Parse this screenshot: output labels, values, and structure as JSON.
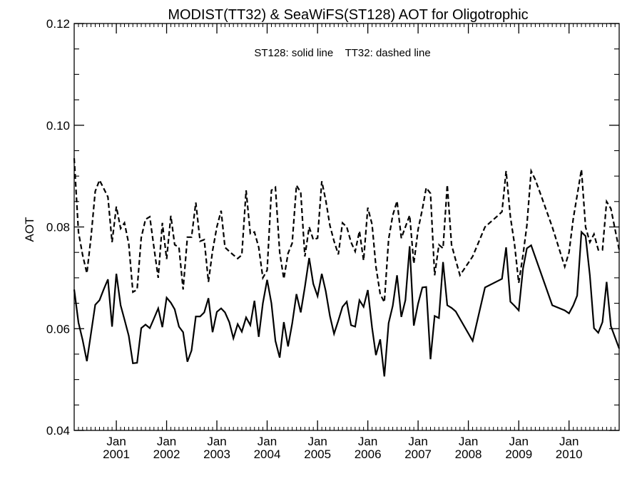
{
  "chart_data": {
    "type": "line",
    "title": "MODIST(TT32) & SeaWiFS(ST128)  AOT for Oligotrophic",
    "xlabel": "",
    "ylabel": "AOT",
    "annotation": "ST128: solid line    TT32: dashed line",
    "xlim": [
      "2000-03-01",
      "2010-12-31"
    ],
    "ylim": [
      0.04,
      0.12
    ],
    "yticks": [
      "0.04",
      "0.06",
      "0.08",
      "0.10",
      "0.12"
    ],
    "xticks": [
      {
        "label_top": "Jan",
        "label_bottom": "2001",
        "date": "2001-01-01"
      },
      {
        "label_top": "Jan",
        "label_bottom": "2002",
        "date": "2002-01-01"
      },
      {
        "label_top": "Jan",
        "label_bottom": "2003",
        "date": "2003-01-01"
      },
      {
        "label_top": "Jan",
        "label_bottom": "2004",
        "date": "2004-01-01"
      },
      {
        "label_top": "Jan",
        "label_bottom": "2005",
        "date": "2005-01-01"
      },
      {
        "label_top": "Jan",
        "label_bottom": "2006",
        "date": "2006-01-01"
      },
      {
        "label_top": "Jan",
        "label_bottom": "2007",
        "date": "2007-01-01"
      },
      {
        "label_top": "Jan",
        "label_bottom": "2008",
        "date": "2008-01-01"
      },
      {
        "label_top": "Jan",
        "label_bottom": "2009",
        "date": "2009-01-01"
      },
      {
        "label_top": "Jan",
        "label_bottom": "2010",
        "date": "2010-01-01"
      }
    ],
    "grid": false,
    "series": [
      {
        "name": "ST128",
        "style": "solid",
        "color": "#000000",
        "points": [
          [
            "2000-03-01",
            0.0677
          ],
          [
            "2000-04-01",
            0.0612
          ],
          [
            "2000-05-01",
            0.0578
          ],
          [
            "2000-06-01",
            0.0536
          ],
          [
            "2000-08-01",
            0.0647
          ],
          [
            "2000-09-01",
            0.0656
          ],
          [
            "2000-10-01",
            0.0677
          ],
          [
            "2000-11-01",
            0.0697
          ],
          [
            "2000-12-01",
            0.0604
          ],
          [
            "2001-01-01",
            0.0708
          ],
          [
            "2001-02-01",
            0.0646
          ],
          [
            "2001-03-01",
            0.0618
          ],
          [
            "2001-04-01",
            0.0586
          ],
          [
            "2001-05-01",
            0.0532
          ],
          [
            "2001-06-01",
            0.0533
          ],
          [
            "2001-07-01",
            0.0601
          ],
          [
            "2001-08-01",
            0.0608
          ],
          [
            "2001-09-01",
            0.0601
          ],
          [
            "2001-10-01",
            0.062
          ],
          [
            "2001-11-01",
            0.064
          ],
          [
            "2001-12-01",
            0.0603
          ],
          [
            "2002-01-01",
            0.0661
          ],
          [
            "2002-02-01",
            0.0651
          ],
          [
            "2002-03-01",
            0.0638
          ],
          [
            "2002-04-01",
            0.0604
          ],
          [
            "2002-05-01",
            0.0593
          ],
          [
            "2002-06-01",
            0.0535
          ],
          [
            "2002-07-01",
            0.0557
          ],
          [
            "2002-08-01",
            0.0624
          ],
          [
            "2002-09-01",
            0.0624
          ],
          [
            "2002-10-01",
            0.0632
          ],
          [
            "2002-11-01",
            0.066
          ],
          [
            "2002-12-01",
            0.0593
          ],
          [
            "2003-01-01",
            0.0633
          ],
          [
            "2003-02-01",
            0.064
          ],
          [
            "2003-03-01",
            0.0632
          ],
          [
            "2003-04-01",
            0.0613
          ],
          [
            "2003-05-01",
            0.0581
          ],
          [
            "2003-06-01",
            0.0609
          ],
          [
            "2003-07-01",
            0.0594
          ],
          [
            "2003-08-01",
            0.0622
          ],
          [
            "2003-09-01",
            0.0607
          ],
          [
            "2003-10-01",
            0.0655
          ],
          [
            "2003-11-01",
            0.0584
          ],
          [
            "2003-12-01",
            0.065
          ],
          [
            "2004-01-01",
            0.0696
          ],
          [
            "2004-02-01",
            0.065
          ],
          [
            "2004-03-01",
            0.0576
          ],
          [
            "2004-04-01",
            0.0543
          ],
          [
            "2004-05-01",
            0.0613
          ],
          [
            "2004-06-01",
            0.0565
          ],
          [
            "2004-07-01",
            0.061
          ],
          [
            "2004-08-01",
            0.0668
          ],
          [
            "2004-09-01",
            0.0632
          ],
          [
            "2004-10-01",
            0.0682
          ],
          [
            "2004-11-01",
            0.0739
          ],
          [
            "2004-12-01",
            0.0688
          ],
          [
            "2005-01-01",
            0.0664
          ],
          [
            "2005-02-01",
            0.0708
          ],
          [
            "2005-03-01",
            0.0674
          ],
          [
            "2005-04-01",
            0.0625
          ],
          [
            "2005-05-01",
            0.059
          ],
          [
            "2005-06-01",
            0.0616
          ],
          [
            "2005-07-01",
            0.0643
          ],
          [
            "2005-08-01",
            0.0653
          ],
          [
            "2005-09-01",
            0.0607
          ],
          [
            "2005-10-01",
            0.0604
          ],
          [
            "2005-11-01",
            0.0656
          ],
          [
            "2005-12-01",
            0.0643
          ],
          [
            "2006-01-01",
            0.0676
          ],
          [
            "2006-02-01",
            0.0602
          ],
          [
            "2006-03-01",
            0.0548
          ],
          [
            "2006-04-01",
            0.0579
          ],
          [
            "2006-05-01",
            0.0506
          ],
          [
            "2006-06-01",
            0.0611
          ],
          [
            "2006-07-01",
            0.0645
          ],
          [
            "2006-08-01",
            0.0705
          ],
          [
            "2006-09-01",
            0.0623
          ],
          [
            "2006-10-01",
            0.0656
          ],
          [
            "2006-11-01",
            0.0762
          ],
          [
            "2006-12-01",
            0.0606
          ],
          [
            "2007-01-01",
            0.0649
          ],
          [
            "2007-02-01",
            0.0681
          ],
          [
            "2007-03-01",
            0.0682
          ],
          [
            "2007-04-01",
            0.054
          ],
          [
            "2007-05-01",
            0.0625
          ],
          [
            "2007-06-01",
            0.0621
          ],
          [
            "2007-07-01",
            0.0731
          ],
          [
            "2007-08-01",
            0.0646
          ],
          [
            "2007-09-01",
            0.0641
          ],
          [
            "2007-10-01",
            0.0634
          ],
          [
            "2008-02-01",
            0.0576
          ],
          [
            "2008-05-01",
            0.0681
          ],
          [
            "2008-09-01",
            0.0698
          ],
          [
            "2008-10-01",
            0.076
          ],
          [
            "2008-11-01",
            0.0653
          ],
          [
            "2008-12-01",
            0.0645
          ],
          [
            "2009-01-01",
            0.0636
          ],
          [
            "2009-02-01",
            0.0718
          ],
          [
            "2009-03-01",
            0.0758
          ],
          [
            "2009-04-01",
            0.0764
          ],
          [
            "2009-09-01",
            0.0646
          ],
          [
            "2009-12-01",
            0.0636
          ],
          [
            "2010-01-01",
            0.063
          ],
          [
            "2010-02-01",
            0.0646
          ],
          [
            "2010-03-01",
            0.0665
          ],
          [
            "2010-04-01",
            0.079
          ],
          [
            "2010-05-01",
            0.0782
          ],
          [
            "2010-06-01",
            0.0705
          ],
          [
            "2010-07-01",
            0.0601
          ],
          [
            "2010-08-01",
            0.0592
          ],
          [
            "2010-09-01",
            0.0613
          ],
          [
            "2010-10-01",
            0.0692
          ],
          [
            "2010-11-01",
            0.0605
          ],
          [
            "2010-12-31",
            0.0561
          ]
        ]
      },
      {
        "name": "TT32",
        "style": "dashed",
        "color": "#000000",
        "points": [
          [
            "2000-03-01",
            0.0935
          ],
          [
            "2000-04-01",
            0.079
          ],
          [
            "2000-05-01",
            0.0745
          ],
          [
            "2000-06-01",
            0.0709
          ],
          [
            "2000-07-01",
            0.078
          ],
          [
            "2000-08-01",
            0.087
          ],
          [
            "2000-09-01",
            0.0892
          ],
          [
            "2000-10-01",
            0.0876
          ],
          [
            "2000-11-01",
            0.0859
          ],
          [
            "2000-12-01",
            0.077
          ],
          [
            "2001-01-01",
            0.084
          ],
          [
            "2001-02-01",
            0.0797
          ],
          [
            "2001-03-01",
            0.0808
          ],
          [
            "2001-04-01",
            0.0767
          ],
          [
            "2001-05-01",
            0.0672
          ],
          [
            "2001-06-01",
            0.0677
          ],
          [
            "2001-07-01",
            0.0779
          ],
          [
            "2001-08-01",
            0.0815
          ],
          [
            "2001-09-01",
            0.082
          ],
          [
            "2001-10-01",
            0.076
          ],
          [
            "2001-11-01",
            0.07
          ],
          [
            "2001-12-01",
            0.0808
          ],
          [
            "2002-01-01",
            0.0737
          ],
          [
            "2002-02-01",
            0.0822
          ],
          [
            "2002-03-01",
            0.0765
          ],
          [
            "2002-04-01",
            0.076
          ],
          [
            "2002-05-01",
            0.0677
          ],
          [
            "2002-06-01",
            0.078
          ],
          [
            "2002-07-01",
            0.078
          ],
          [
            "2002-08-01",
            0.0848
          ],
          [
            "2002-09-01",
            0.0772
          ],
          [
            "2002-10-01",
            0.0775
          ],
          [
            "2002-11-01",
            0.0692
          ],
          [
            "2002-12-01",
            0.0753
          ],
          [
            "2003-01-01",
            0.08
          ],
          [
            "2003-02-01",
            0.0832
          ],
          [
            "2003-03-01",
            0.076
          ],
          [
            "2003-04-01",
            0.0752
          ],
          [
            "2003-05-01",
            0.0745
          ],
          [
            "2003-06-01",
            0.0738
          ],
          [
            "2003-07-01",
            0.0745
          ],
          [
            "2003-08-01",
            0.0872
          ],
          [
            "2003-09-01",
            0.0787
          ],
          [
            "2003-10-01",
            0.079
          ],
          [
            "2003-11-01",
            0.076
          ],
          [
            "2003-12-01",
            0.07
          ],
          [
            "2004-01-01",
            0.0715
          ],
          [
            "2004-02-01",
            0.0872
          ],
          [
            "2004-03-01",
            0.0878
          ],
          [
            "2004-04-01",
            0.075
          ],
          [
            "2004-05-01",
            0.0698
          ],
          [
            "2004-06-01",
            0.0748
          ],
          [
            "2004-07-01",
            0.0768
          ],
          [
            "2004-08-01",
            0.0882
          ],
          [
            "2004-09-01",
            0.0868
          ],
          [
            "2004-10-01",
            0.0742
          ],
          [
            "2004-11-01",
            0.08
          ],
          [
            "2004-12-01",
            0.0775
          ],
          [
            "2005-01-01",
            0.0778
          ],
          [
            "2005-02-01",
            0.089
          ],
          [
            "2005-03-01",
            0.0853
          ],
          [
            "2005-04-01",
            0.0803
          ],
          [
            "2005-05-01",
            0.0772
          ],
          [
            "2005-06-01",
            0.0746
          ],
          [
            "2005-07-01",
            0.0808
          ],
          [
            "2005-08-01",
            0.08
          ],
          [
            "2005-09-01",
            0.077
          ],
          [
            "2005-10-01",
            0.0752
          ],
          [
            "2005-11-01",
            0.0792
          ],
          [
            "2005-12-01",
            0.0734
          ],
          [
            "2006-01-01",
            0.0838
          ],
          [
            "2006-02-01",
            0.0805
          ],
          [
            "2006-03-01",
            0.0722
          ],
          [
            "2006-04-01",
            0.0668
          ],
          [
            "2006-05-01",
            0.0652
          ],
          [
            "2006-06-01",
            0.0776
          ],
          [
            "2006-07-01",
            0.0823
          ],
          [
            "2006-08-01",
            0.0851
          ],
          [
            "2006-09-01",
            0.0778
          ],
          [
            "2006-10-01",
            0.08
          ],
          [
            "2006-11-01",
            0.0823
          ],
          [
            "2006-12-01",
            0.0728
          ],
          [
            "2007-01-01",
            0.0795
          ],
          [
            "2007-02-01",
            0.0835
          ],
          [
            "2007-03-01",
            0.0877
          ],
          [
            "2007-04-01",
            0.0866
          ],
          [
            "2007-05-01",
            0.0705
          ],
          [
            "2007-06-01",
            0.0765
          ],
          [
            "2007-07-01",
            0.0758
          ],
          [
            "2007-08-01",
            0.0883
          ],
          [
            "2007-09-01",
            0.0765
          ],
          [
            "2007-10-01",
            0.0735
          ],
          [
            "2007-11-01",
            0.0705
          ],
          [
            "2008-02-01",
            0.0742
          ],
          [
            "2008-05-01",
            0.08
          ],
          [
            "2008-08-01",
            0.0822
          ],
          [
            "2008-09-01",
            0.083
          ],
          [
            "2008-10-01",
            0.091
          ],
          [
            "2008-11-01",
            0.082
          ],
          [
            "2008-12-01",
            0.0766
          ],
          [
            "2009-01-01",
            0.069
          ],
          [
            "2009-02-01",
            0.0745
          ],
          [
            "2009-03-01",
            0.0803
          ],
          [
            "2009-04-01",
            0.091
          ],
          [
            "2009-05-01",
            0.0893
          ],
          [
            "2009-06-01",
            0.087
          ],
          [
            "2009-09-01",
            0.08
          ],
          [
            "2009-12-01",
            0.0722
          ],
          [
            "2010-01-01",
            0.075
          ],
          [
            "2010-02-01",
            0.0817
          ],
          [
            "2010-03-01",
            0.0862
          ],
          [
            "2010-04-01",
            0.0913
          ],
          [
            "2010-05-01",
            0.08
          ],
          [
            "2010-06-01",
            0.077
          ],
          [
            "2010-07-01",
            0.0786
          ],
          [
            "2010-08-01",
            0.0755
          ],
          [
            "2010-09-01",
            0.0755
          ],
          [
            "2010-10-01",
            0.085
          ],
          [
            "2010-11-01",
            0.0836
          ],
          [
            "2010-12-31",
            0.0755
          ]
        ]
      }
    ]
  }
}
